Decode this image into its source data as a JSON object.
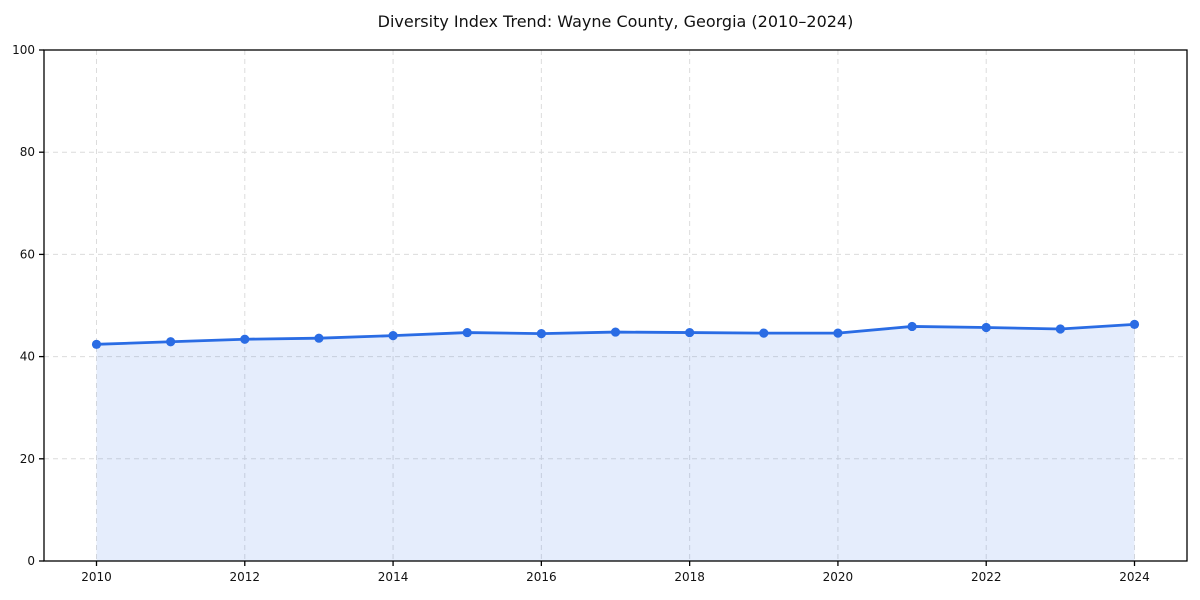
{
  "page": {
    "background": "#ffffff"
  },
  "chart_data": {
    "type": "area",
    "title": "Diversity Index Trend: Wayne County, Georgia (2010–2024)",
    "x": [
      2010,
      2011,
      2012,
      2013,
      2014,
      2015,
      2016,
      2017,
      2018,
      2019,
      2020,
      2021,
      2022,
      2023,
      2024
    ],
    "series": [
      {
        "name": "Diversity Index",
        "values": [
          42.4,
          42.9,
          43.4,
          43.6,
          44.1,
          44.7,
          44.5,
          44.8,
          44.7,
          44.6,
          44.6,
          45.9,
          45.7,
          45.4,
          46.3
        ]
      }
    ],
    "xlabel": "",
    "ylabel": "",
    "ylim": [
      0,
      100
    ],
    "yticks": [
      0,
      20,
      40,
      60,
      80,
      100
    ],
    "xticks": [
      2010,
      2012,
      2014,
      2016,
      2018,
      2020,
      2022,
      2024
    ],
    "grid": true,
    "grid_style": "dashed",
    "legend": "none",
    "marker": "circle",
    "colors": {
      "line": "#2a6ce4",
      "marker": "#2a6ce4",
      "fill": "#2a6ce4",
      "fill_opacity": 0.12,
      "grid": "#dcdcdc",
      "axis": "#000000",
      "text": "#111111"
    }
  }
}
